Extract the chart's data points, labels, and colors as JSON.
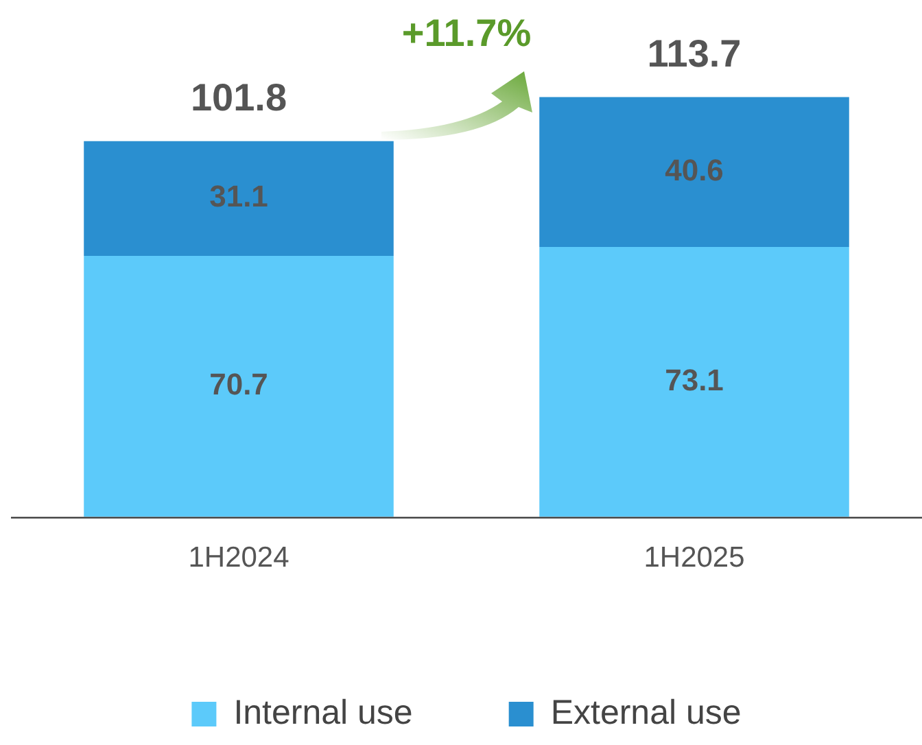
{
  "chart_data": {
    "type": "bar",
    "stacked": true,
    "categories": [
      "1H2024",
      "1H2025"
    ],
    "series": [
      {
        "name": "Internal use",
        "color": "#5ccafa",
        "values": [
          70.7,
          73.1
        ]
      },
      {
        "name": "External use",
        "color": "#2a8fd0",
        "values": [
          31.1,
          40.6
        ]
      }
    ],
    "tick_labels": "x",
    "data_labels": true,
    "totals": [
      "101.8",
      "113.7"
    ],
    "annotations": [
      "+11.7%"
    ],
    "legend": "bottom",
    "grid": false
  }
}
